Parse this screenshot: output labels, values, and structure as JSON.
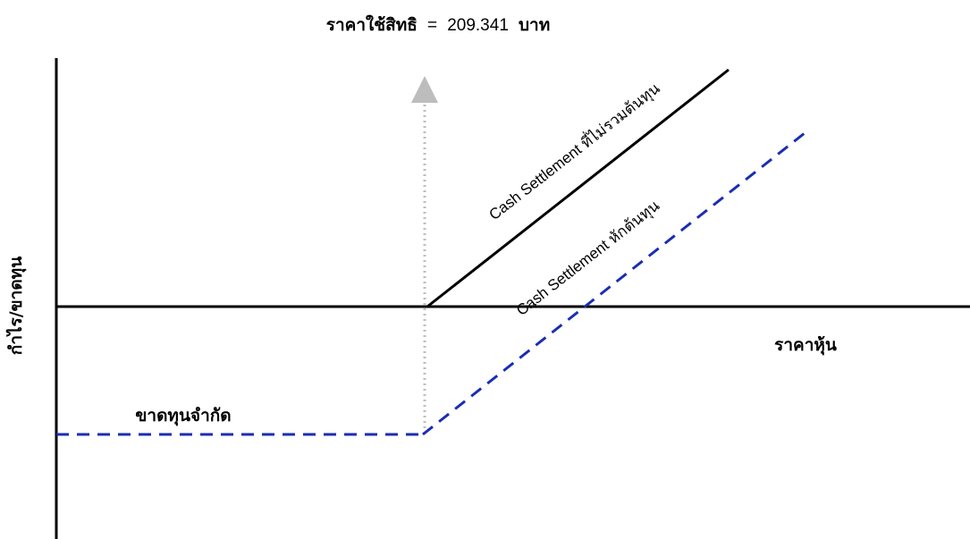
{
  "title": {
    "label": "ราคาใช้สิทธิ",
    "equals": "=",
    "value": "209.341",
    "unit": "บาท"
  },
  "axes": {
    "y_label": "กำไร/ขาดทุน",
    "x_label": "ราคาหุ้น"
  },
  "annotations": {
    "limited_loss": "ขาดทุนจำกัด",
    "gross_payoff": "Cash Settlement ที่ไม่รวมต้นทุน",
    "net_payoff": "Cash Settlement หักต้นทุน"
  },
  "colors": {
    "axis": "#000000",
    "gross_line": "#000000",
    "net_line": "#1a2db3",
    "strike_marker": "#bdbdbd"
  }
}
